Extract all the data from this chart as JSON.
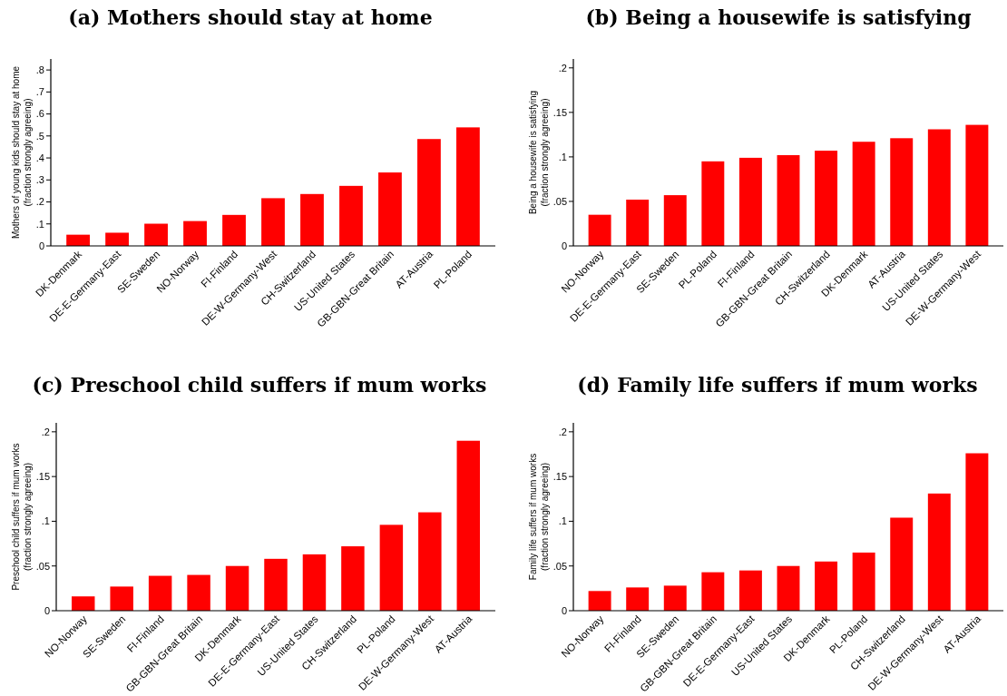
{
  "chart_data": [
    {
      "type": "bar",
      "title": "(a) Mothers should stay at home",
      "ylabel": "Mothers of young kids should stay at home\n(fraction strongly agreeing)",
      "categories": [
        "DK-Denmark",
        "DE-E-Germany-East",
        "SE-Sweden",
        "NO-Norway",
        "FI-Finland",
        "DE-W-Germany-West",
        "CH-Switzerland",
        "US-United States",
        "GB-GBN-Great Britain",
        "AT-Austria",
        "PL-Poland"
      ],
      "values": [
        0.051,
        0.06,
        0.101,
        0.113,
        0.141,
        0.217,
        0.236,
        0.273,
        0.334,
        0.486,
        0.539
      ],
      "color": "#ff0000",
      "ylim": [
        0,
        0.85
      ],
      "yticks": [
        {
          "value": 0,
          "label": "0"
        },
        {
          "value": 0.1,
          "label": ".1"
        },
        {
          "value": 0.2,
          "label": ".2"
        },
        {
          "value": 0.3,
          "label": ".3"
        },
        {
          "value": 0.4,
          "label": ".4"
        },
        {
          "value": 0.5,
          "label": ".5"
        },
        {
          "value": 0.6,
          "label": ".6"
        },
        {
          "value": 0.7,
          "label": ".7"
        },
        {
          "value": 0.8,
          "label": ".8"
        }
      ]
    },
    {
      "type": "bar",
      "title": "(b) Being a housewife is satisfying",
      "ylabel": "Being a housewife is satisfying\n(fraction strongly agreeing)",
      "categories": [
        "NO-Norway",
        "DE-E-Germany-East",
        "SE-Sweden",
        "PL-Poland",
        "FI-Finland",
        "GB-GBN-Great Britain",
        "CH-Switzerland",
        "DK-Denmark",
        "AT-Austria",
        "US-United States",
        "DE-W-Germany-West"
      ],
      "values": [
        0.035,
        0.052,
        0.057,
        0.095,
        0.099,
        0.102,
        0.107,
        0.117,
        0.121,
        0.131,
        0.136
      ],
      "color": "#ff0000",
      "ylim": [
        0,
        0.21
      ],
      "yticks": [
        {
          "value": 0,
          "label": "0"
        },
        {
          "value": 0.05,
          "label": ".05"
        },
        {
          "value": 0.1,
          "label": ".1"
        },
        {
          "value": 0.15,
          "label": ".15"
        },
        {
          "value": 0.2,
          "label": ".2"
        }
      ]
    },
    {
      "type": "bar",
      "title": "(c) Preschool child suffers if mum works",
      "ylabel": "Preschool child suffers if mum works\n(fraction strongly agreeing)",
      "categories": [
        "NO-Norway",
        "SE-Sweden",
        "FI-Finland",
        "GB-GBN-Great Britain",
        "DK-Denmark",
        "DE-E-Germany-East",
        "US-United States",
        "CH-Switzerland",
        "PL-Poland",
        "DE-W-Germany-West",
        "AT-Austria"
      ],
      "values": [
        0.016,
        0.027,
        0.039,
        0.04,
        0.05,
        0.058,
        0.063,
        0.072,
        0.096,
        0.11,
        0.19
      ],
      "color": "#ff0000",
      "ylim": [
        0,
        0.21
      ],
      "yticks": [
        {
          "value": 0,
          "label": "0"
        },
        {
          "value": 0.05,
          "label": ".05"
        },
        {
          "value": 0.1,
          "label": ".1"
        },
        {
          "value": 0.15,
          "label": ".15"
        },
        {
          "value": 0.2,
          "label": ".2"
        }
      ]
    },
    {
      "type": "bar",
      "title": "(d) Family life suffers if mum works",
      "ylabel": "Family life suffers if mum works\n(fraction strongly agreeing)",
      "categories": [
        "NO-Norway",
        "FI-Finland",
        "SE-Sweden",
        "GB-GBN-Great Britain",
        "DE-E-Germany-East",
        "US-United States",
        "DK-Denmark",
        "PL-Poland",
        "CH-Switzerland",
        "DE-W-Germany-West",
        "AT-Austria"
      ],
      "values": [
        0.022,
        0.026,
        0.028,
        0.043,
        0.045,
        0.05,
        0.055,
        0.065,
        0.104,
        0.131,
        0.176
      ],
      "color": "#ff0000",
      "ylim": [
        0,
        0.21
      ],
      "yticks": [
        {
          "value": 0,
          "label": "0"
        },
        {
          "value": 0.05,
          "label": ".05"
        },
        {
          "value": 0.1,
          "label": ".1"
        },
        {
          "value": 0.15,
          "label": ".15"
        },
        {
          "value": 0.2,
          "label": ".2"
        }
      ]
    }
  ]
}
